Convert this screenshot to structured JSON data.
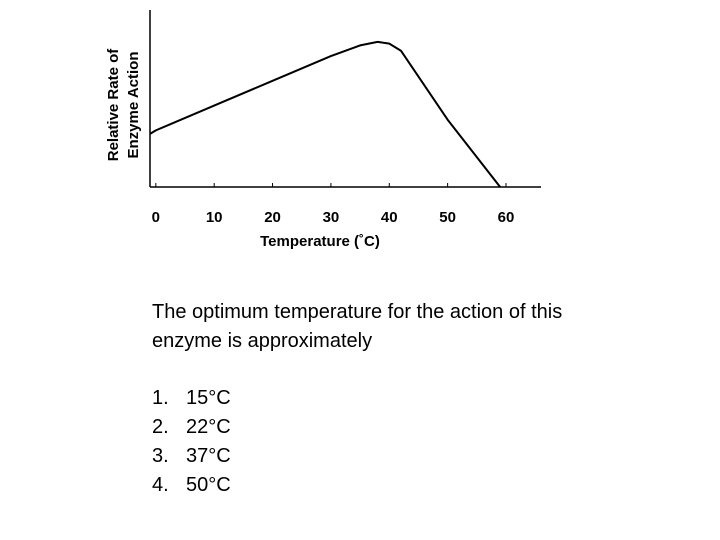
{
  "chart_data": {
    "type": "line",
    "xlabel": "Temperature (˚C)",
    "ylabel": [
      "Relative Rate of",
      "Enzyme Action"
    ],
    "x": [
      -1,
      0,
      10,
      20,
      30,
      35,
      38,
      40,
      42,
      50,
      59
    ],
    "y": [
      30,
      32,
      46,
      60,
      74,
      80,
      82,
      81,
      77,
      38,
      0
    ],
    "color": "#000000",
    "xlim": [
      -1,
      66
    ],
    "ylim": [
      0,
      100
    ],
    "xticks": [
      0,
      10,
      20,
      30,
      40,
      50,
      60
    ]
  },
  "question": [
    "The optimum temperature for the action of this",
    "enzyme is approximately"
  ],
  "options": [
    {
      "number": "1.",
      "text": "15°C"
    },
    {
      "number": "2.",
      "text": "22°C"
    },
    {
      "number": "3.",
      "text": "37°C"
    },
    {
      "number": "4.",
      "text": "50°C"
    }
  ]
}
